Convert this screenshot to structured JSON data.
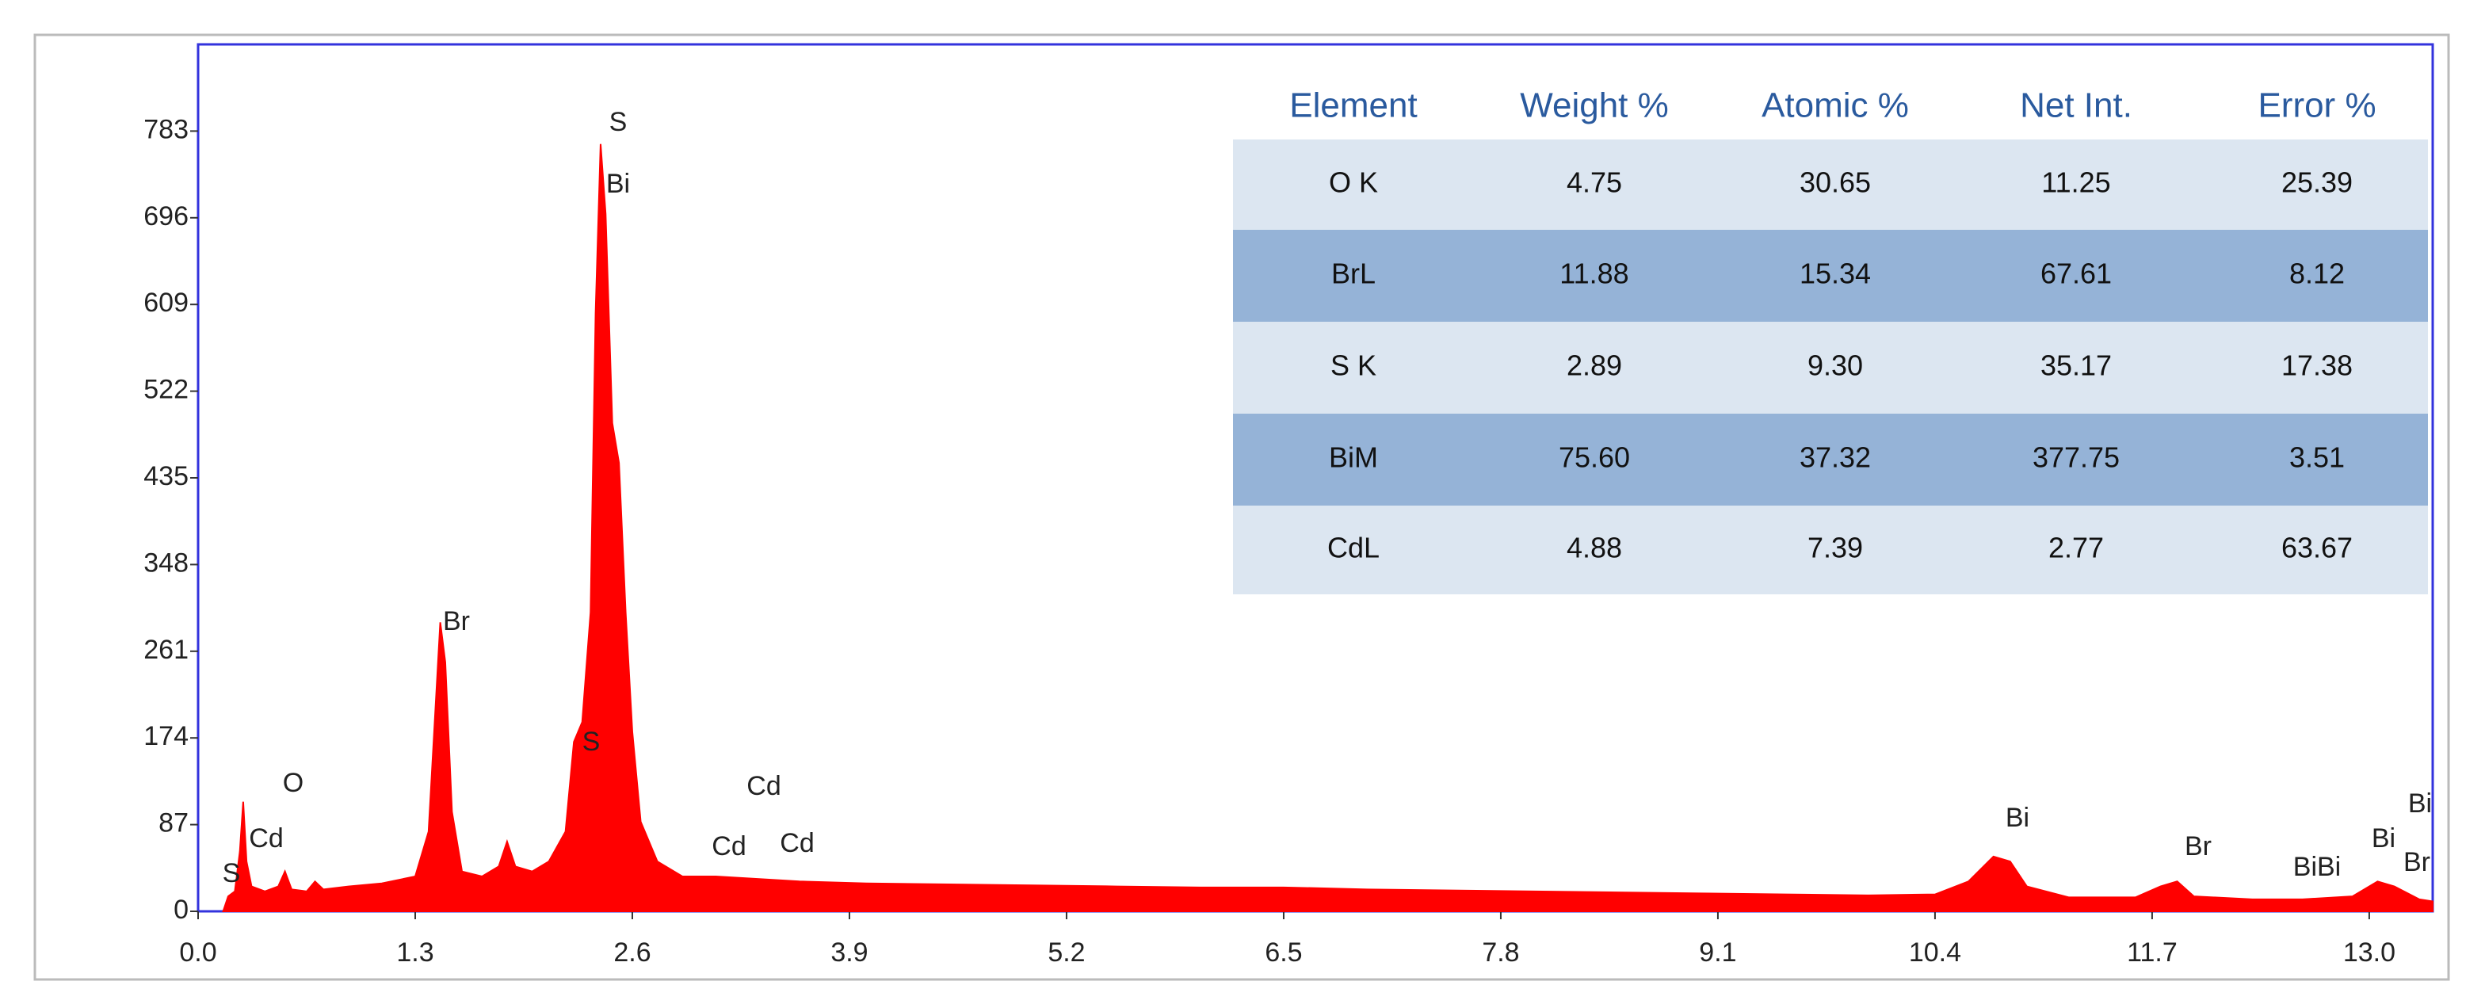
{
  "chart_data": {
    "type": "area",
    "xlim": [
      0,
      13.38
    ],
    "ylim": [
      0,
      870
    ],
    "xticks": [
      {
        "value": 0,
        "label": "0.0"
      },
      1.3,
      2.6,
      3.9,
      5.2,
      6.5,
      7.8,
      9.1,
      10.4,
      11.7,
      {
        "value": 13,
        "label": "13.0"
      }
    ],
    "yticks": [
      0,
      87,
      174,
      261,
      348,
      435,
      522,
      609,
      696,
      783
    ],
    "series": [
      {
        "color": "#ff0000",
        "x": [
          0.15,
          0.18,
          0.22,
          0.25,
          0.27,
          0.29,
          0.32,
          0.4,
          0.48,
          0.52,
          0.56,
          0.65,
          0.7,
          0.75,
          0.9,
          1.1,
          1.3,
          1.38,
          1.42,
          1.45,
          1.48,
          1.52,
          1.58,
          1.7,
          1.8,
          1.85,
          1.9,
          2.0,
          2.1,
          2.2,
          2.25,
          2.3,
          2.35,
          2.38,
          2.41,
          2.44,
          2.48,
          2.52,
          2.56,
          2.6,
          2.65,
          2.75,
          2.9,
          3.1,
          3.3,
          3.6,
          4.0,
          4.5,
          5.0,
          5.5,
          6.0,
          6.5,
          7.0,
          7.5,
          8.0,
          8.5,
          9.0,
          9.5,
          10.0,
          10.4,
          10.6,
          10.75,
          10.85,
          10.95,
          11.2,
          11.6,
          11.75,
          11.85,
          11.95,
          12.3,
          12.6,
          12.9,
          13.05,
          13.15,
          13.3,
          13.38
        ],
        "values": [
          0,
          15,
          20,
          60,
          110,
          50,
          25,
          20,
          25,
          40,
          22,
          20,
          30,
          22,
          25,
          28,
          35,
          80,
          200,
          290,
          250,
          100,
          40,
          35,
          45,
          70,
          45,
          40,
          50,
          80,
          170,
          190,
          300,
          600,
          770,
          700,
          490,
          450,
          300,
          180,
          90,
          50,
          35,
          35,
          33,
          30,
          28,
          27,
          26,
          25,
          24,
          24,
          22,
          21,
          20,
          19,
          18,
          17,
          16,
          17,
          30,
          55,
          50,
          25,
          14,
          14,
          25,
          30,
          15,
          12,
          12,
          15,
          30,
          25,
          12,
          10
        ]
      }
    ],
    "annotations": [
      "S",
      "Cd",
      "O",
      "Br",
      "S",
      "Bi",
      "S",
      "Cd",
      "Cd",
      "Cd",
      "Bi",
      "Br",
      "BiBi",
      "Bi",
      "Bi",
      "Br"
    ]
  },
  "table": {
    "header": [
      "Element",
      "Weight %",
      "Atomic %",
      "Net Int.",
      "Error %"
    ],
    "rows": [
      [
        "O K",
        "4.75",
        "30.65",
        "11.25",
        "25.39"
      ],
      [
        "BrL",
        "11.88",
        "15.34",
        "67.61",
        "8.12"
      ],
      [
        "S K",
        "2.89",
        "9.30",
        "35.17",
        "17.38"
      ],
      [
        "BiM",
        "75.60",
        "37.32",
        "377.75",
        "3.51"
      ],
      [
        "CdL",
        "4.88",
        "7.39",
        "2.77",
        "63.67"
      ]
    ]
  }
}
